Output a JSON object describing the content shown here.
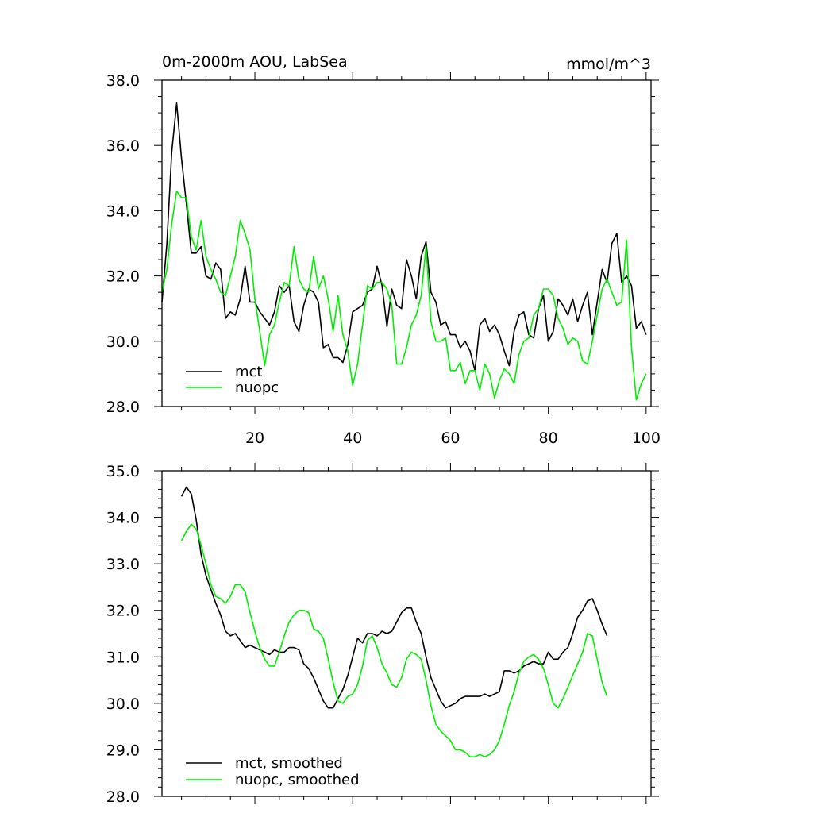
{
  "chart_data": [
    {
      "type": "line",
      "title": "0m-2000m AOU, LabSea",
      "units": "mmol/m^3",
      "xlim": [
        1,
        101
      ],
      "ylim": [
        28.0,
        38.0
      ],
      "xticks": [
        20,
        40,
        60,
        80,
        100
      ],
      "xtick_labels": [
        "20",
        "40",
        "60",
        "80",
        "100"
      ],
      "yticks": [
        28.0,
        30.0,
        32.0,
        34.0,
        36.0,
        38.0
      ],
      "ytick_labels": [
        "28.0",
        "30.0",
        "32.0",
        "34.0",
        "36.0",
        "38.0"
      ],
      "legend_position": "bottom-left",
      "series": [
        {
          "name": "mct",
          "color": "#000000",
          "values": [
            31.2,
            33.0,
            35.8,
            37.3,
            35.6,
            34.2,
            32.7,
            32.7,
            32.9,
            32.0,
            31.9,
            32.4,
            32.2,
            30.7,
            30.9,
            30.8,
            31.3,
            32.3,
            31.2,
            31.2,
            30.9,
            30.7,
            30.5,
            30.9,
            31.7,
            31.5,
            31.7,
            30.6,
            30.3,
            31.1,
            31.6,
            31.5,
            31.2,
            29.8,
            29.9,
            29.5,
            29.5,
            29.35,
            29.9,
            30.9,
            31.0,
            31.1,
            31.5,
            31.6,
            32.3,
            31.7,
            30.45,
            31.6,
            31.1,
            31.0,
            32.5,
            32.0,
            31.3,
            32.6,
            33.05,
            31.5,
            31.2,
            30.5,
            30.6,
            30.2,
            30.2,
            29.8,
            30.0,
            29.7,
            29.1,
            30.5,
            30.7,
            30.3,
            30.5,
            30.2,
            29.7,
            29.25,
            30.3,
            30.8,
            30.9,
            30.2,
            30.1,
            31.0,
            31.4,
            30.0,
            30.3,
            31.3,
            31.1,
            30.8,
            31.3,
            30.6,
            31.1,
            31.5,
            30.2,
            31.2,
            32.2,
            31.8,
            33.0,
            33.3,
            31.8,
            32.0,
            31.7,
            30.4,
            30.6,
            30.2
          ]
        },
        {
          "name": "nuopc",
          "color": "#00ee00",
          "values": [
            31.5,
            32.2,
            33.6,
            34.6,
            34.4,
            34.4,
            33.2,
            32.8,
            33.7,
            32.6,
            32.2,
            31.9,
            31.5,
            31.4,
            32.0,
            32.6,
            33.7,
            33.3,
            32.8,
            31.3,
            30.3,
            29.25,
            30.2,
            30.5,
            31.2,
            31.8,
            31.7,
            32.9,
            31.9,
            31.6,
            31.5,
            32.6,
            31.6,
            32.0,
            31.3,
            30.3,
            31.4,
            30.2,
            29.7,
            28.65,
            29.3,
            30.5,
            31.7,
            31.6,
            31.8,
            31.8,
            31.6,
            31.1,
            29.3,
            29.3,
            29.8,
            30.5,
            30.8,
            31.4,
            32.9,
            30.6,
            30.0,
            30.0,
            30.1,
            29.1,
            29.1,
            29.35,
            28.7,
            29.1,
            29.1,
            28.5,
            29.3,
            29.0,
            28.25,
            28.8,
            29.15,
            29.0,
            28.7,
            29.6,
            30.0,
            30.1,
            30.8,
            31.0,
            31.6,
            31.6,
            31.4,
            30.7,
            30.4,
            29.9,
            30.1,
            30.0,
            29.4,
            29.3,
            30.0,
            30.8,
            31.6,
            31.9,
            31.5,
            31.1,
            31.2,
            33.1,
            29.8,
            28.2,
            28.7,
            29.0
          ]
        }
      ]
    },
    {
      "type": "line",
      "xlim": [
        1,
        101
      ],
      "ylim": [
        28.0,
        35.0
      ],
      "xticks": [
        20,
        40,
        60,
        80,
        100
      ],
      "yticks": [
        28.0,
        29.0,
        30.0,
        31.0,
        32.0,
        33.0,
        34.0,
        35.0
      ],
      "ytick_labels": [
        "28.0",
        "29.0",
        "30.0",
        "31.0",
        "32.0",
        "33.0",
        "34.0",
        "35.0"
      ],
      "legend_position": "bottom-left",
      "series": [
        {
          "name": "mct, smoothed",
          "color": "#000000",
          "x_start": 5,
          "values": [
            34.45,
            34.65,
            34.5,
            33.95,
            33.2,
            32.75,
            32.45,
            32.15,
            31.9,
            31.55,
            31.45,
            31.5,
            31.35,
            31.2,
            31.25,
            31.2,
            31.15,
            31.1,
            31.05,
            31.15,
            31.1,
            31.1,
            31.2,
            31.2,
            31.15,
            30.85,
            30.75,
            30.55,
            30.3,
            30.05,
            29.9,
            29.9,
            30.1,
            30.3,
            30.6,
            31.0,
            31.4,
            31.3,
            31.5,
            31.5,
            31.45,
            31.55,
            31.5,
            31.55,
            31.75,
            31.95,
            32.05,
            32.05,
            31.75,
            31.5,
            31.0,
            30.55,
            30.3,
            30.05,
            29.9,
            29.95,
            30.0,
            30.1,
            30.15,
            30.15,
            30.15,
            30.15,
            30.2,
            30.15,
            30.2,
            30.25,
            30.7,
            30.7,
            30.65,
            30.7,
            30.8,
            30.85,
            30.9,
            30.85,
            30.85,
            31.1,
            30.95,
            30.95,
            31.1,
            31.2,
            31.5,
            31.85,
            32.0,
            32.2,
            32.25,
            32.0,
            31.7,
            31.45
          ]
        },
        {
          "name": "nuopc, smoothed",
          "color": "#00ee00",
          "x_start": 5,
          "values": [
            33.5,
            33.7,
            33.85,
            33.75,
            33.4,
            33.0,
            32.55,
            32.3,
            32.25,
            32.15,
            32.3,
            32.55,
            32.55,
            32.4,
            31.95,
            31.55,
            31.2,
            30.95,
            30.8,
            30.8,
            31.1,
            31.45,
            31.75,
            31.9,
            32.0,
            32.0,
            31.95,
            31.6,
            31.55,
            31.4,
            30.95,
            30.45,
            30.05,
            30.0,
            30.15,
            30.2,
            30.4,
            30.8,
            31.35,
            31.45,
            31.2,
            30.85,
            30.65,
            30.4,
            30.35,
            30.55,
            30.95,
            31.1,
            31.05,
            30.95,
            30.5,
            29.95,
            29.55,
            29.4,
            29.3,
            29.2,
            29.0,
            29.0,
            28.95,
            28.85,
            28.85,
            28.9,
            28.85,
            28.9,
            29.0,
            29.2,
            29.55,
            29.95,
            30.25,
            30.65,
            30.9,
            31.0,
            31.05,
            30.95,
            30.75,
            30.4,
            30.0,
            29.9,
            30.1,
            30.35,
            30.6,
            30.85,
            31.1,
            31.5,
            31.45,
            30.95,
            30.45,
            30.15
          ]
        }
      ]
    }
  ]
}
